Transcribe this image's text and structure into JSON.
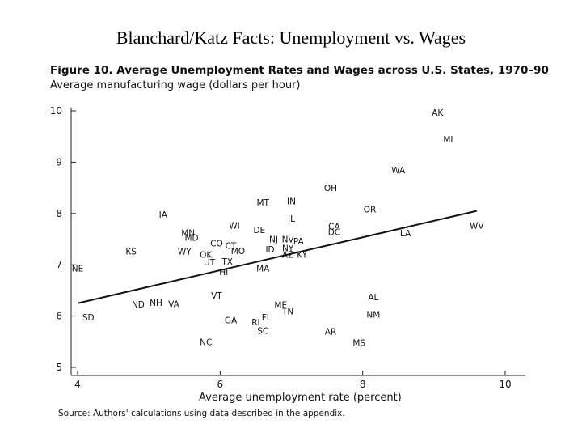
{
  "slide_title": "Blanchard/Katz Facts:  Unemployment vs. Wages",
  "chart_data": {
    "type": "scatter",
    "title": "Figure 10.  Average Unemployment Rates and Wages across U.S. States, 1970–90",
    "ylabel": "Average manufacturing wage (dollars per hour)",
    "xlabel": "Average unemployment rate (percent)",
    "source": "Source:  Authors' calculations using data described in the appendix.",
    "xlim": [
      4,
      10
    ],
    "ylim": [
      5,
      10
    ],
    "x_ticks": [
      4,
      6,
      8,
      10
    ],
    "y_ticks": [
      5,
      6,
      7,
      8,
      9,
      10
    ],
    "grid": false,
    "fit_line": {
      "x": [
        4.0,
        9.6
      ],
      "y": [
        6.25,
        8.05
      ]
    },
    "points": [
      {
        "label": "AK",
        "x": 9.05,
        "y": 9.97
      },
      {
        "label": "MI",
        "x": 9.2,
        "y": 9.45
      },
      {
        "label": "WA",
        "x": 8.5,
        "y": 8.85
      },
      {
        "label": "OH",
        "x": 7.55,
        "y": 8.5
      },
      {
        "label": "OR",
        "x": 8.1,
        "y": 8.08
      },
      {
        "label": "MT",
        "x": 6.6,
        "y": 8.22
      },
      {
        "label": "IN",
        "x": 7.0,
        "y": 8.24
      },
      {
        "label": "IL",
        "x": 7.0,
        "y": 7.9
      },
      {
        "label": "IA",
        "x": 5.2,
        "y": 7.98
      },
      {
        "label": "WI",
        "x": 6.2,
        "y": 7.77
      },
      {
        "label": "DE",
        "x": 6.55,
        "y": 7.68
      },
      {
        "label": "CA",
        "x": 7.6,
        "y": 7.75
      },
      {
        "label": "DC",
        "x": 7.6,
        "y": 7.64
      },
      {
        "label": "LA",
        "x": 8.6,
        "y": 7.62
      },
      {
        "label": "WV",
        "x": 9.6,
        "y": 7.77
      },
      {
        "label": "MN",
        "x": 5.55,
        "y": 7.63
      },
      {
        "label": "MD",
        "x": 5.6,
        "y": 7.53
      },
      {
        "label": "NJ",
        "x": 6.75,
        "y": 7.5
      },
      {
        "label": "NV",
        "x": 6.95,
        "y": 7.5
      },
      {
        "label": "PA",
        "x": 7.1,
        "y": 7.46
      },
      {
        "label": "NY",
        "x": 6.95,
        "y": 7.33
      },
      {
        "label": "CO",
        "x": 5.95,
        "y": 7.42
      },
      {
        "label": "CT",
        "x": 6.15,
        "y": 7.37
      },
      {
        "label": "MO",
        "x": 6.25,
        "y": 7.27
      },
      {
        "label": "ID",
        "x": 6.7,
        "y": 7.3
      },
      {
        "label": "AZ",
        "x": 6.95,
        "y": 7.2
      },
      {
        "label": "KY",
        "x": 7.15,
        "y": 7.2
      },
      {
        "label": "KS",
        "x": 4.75,
        "y": 7.26
      },
      {
        "label": "WY",
        "x": 5.5,
        "y": 7.26
      },
      {
        "label": "OK",
        "x": 5.8,
        "y": 7.2
      },
      {
        "label": "UT",
        "x": 5.85,
        "y": 7.05
      },
      {
        "label": "TX",
        "x": 6.1,
        "y": 7.07
      },
      {
        "label": "MA",
        "x": 6.6,
        "y": 6.93
      },
      {
        "label": "HI",
        "x": 6.05,
        "y": 6.86
      },
      {
        "label": "NE",
        "x": 4.0,
        "y": 6.93
      },
      {
        "label": "VT",
        "x": 5.95,
        "y": 6.4
      },
      {
        "label": "AL",
        "x": 8.15,
        "y": 6.37
      },
      {
        "label": "ND",
        "x": 4.85,
        "y": 6.23
      },
      {
        "label": "NH",
        "x": 5.1,
        "y": 6.26
      },
      {
        "label": "VA",
        "x": 5.35,
        "y": 6.24
      },
      {
        "label": "ME",
        "x": 6.85,
        "y": 6.22
      },
      {
        "label": "TN",
        "x": 6.95,
        "y": 6.1
      },
      {
        "label": "NM",
        "x": 8.15,
        "y": 6.03
      },
      {
        "label": "SD",
        "x": 4.15,
        "y": 5.98
      },
      {
        "label": "FL",
        "x": 6.65,
        "y": 5.98
      },
      {
        "label": "GA",
        "x": 6.15,
        "y": 5.92
      },
      {
        "label": "RI",
        "x": 6.5,
        "y": 5.88
      },
      {
        "label": "SC",
        "x": 6.6,
        "y": 5.72
      },
      {
        "label": "AR",
        "x": 7.55,
        "y": 5.7
      },
      {
        "label": "NC",
        "x": 5.8,
        "y": 5.5
      },
      {
        "label": "MS",
        "x": 7.95,
        "y": 5.48
      }
    ]
  }
}
